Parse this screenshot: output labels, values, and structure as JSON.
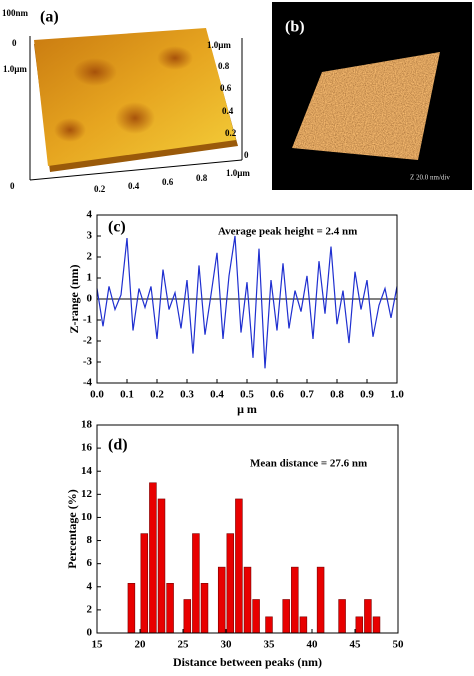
{
  "images": [
    {
      "label": "(a)",
      "z_top": "100nm",
      "z_zero": "0",
      "left_axis": "1.0µm",
      "right_top": "1.0µm",
      "right_ticks": [
        "0.8",
        "0.6",
        "0.4",
        "0.2",
        "0"
      ],
      "bottom_zero": "0",
      "bottom_ticks": [
        "0.2",
        "0.4",
        "0.6",
        "0.8"
      ],
      "bottom_end": "1.0µm"
    },
    {
      "label": "(b)",
      "scale": "Z 20.0 nm/div"
    }
  ],
  "chart_data": [
    {
      "type": "line",
      "label": "(c)",
      "annotation": "Average peak height = 2.4 nm",
      "x_label": "μ m",
      "y_label": "Z-range (nm)",
      "x": [
        0,
        0.02,
        0.04,
        0.06,
        0.08,
        0.1,
        0.12,
        0.14,
        0.16,
        0.18,
        0.2,
        0.22,
        0.24,
        0.26,
        0.28,
        0.3,
        0.32,
        0.34,
        0.36,
        0.38,
        0.4,
        0.42,
        0.44,
        0.46,
        0.48,
        0.5,
        0.52,
        0.54,
        0.56,
        0.58,
        0.6,
        0.62,
        0.64,
        0.66,
        0.68,
        0.7,
        0.72,
        0.74,
        0.76,
        0.78,
        0.8,
        0.82,
        0.84,
        0.86,
        0.88,
        0.9,
        0.92,
        0.94,
        0.96,
        0.98,
        1
      ],
      "series": [
        {
          "color": "#1f2fd0",
          "values": [
            0.5,
            -1.3,
            0.6,
            -0.5,
            0.2,
            2.9,
            -1.5,
            0.5,
            -0.4,
            0.6,
            -1.9,
            1.4,
            -0.5,
            0.3,
            -1.4,
            0.9,
            -2.6,
            1.6,
            -1.7,
            0.2,
            2.2,
            -1.9,
            1.1,
            3.0,
            -1.6,
            0.8,
            -2.8,
            2.4,
            -3.3,
            0.9,
            -1.5,
            1.7,
            -1.4,
            0.4,
            -0.6,
            1.1,
            -1.9,
            1.8,
            -0.7,
            2.5,
            -1.2,
            0.4,
            -2.1,
            1.3,
            -0.5,
            0.9,
            -1.8,
            -0.3,
            0.5,
            -0.9,
            0.6
          ]
        }
      ],
      "xlim": [
        0,
        1
      ],
      "xticks": [
        {
          "value": 0,
          "label": "0.0"
        },
        0.1,
        0.2,
        0.3,
        0.4,
        0.5,
        0.6,
        0.7,
        0.8,
        0.9,
        {
          "value": 1,
          "label": "1.0"
        }
      ],
      "ylim": [
        -4,
        4
      ],
      "yticks": [
        -4,
        -3,
        -2,
        -1,
        0,
        1,
        2,
        3,
        4
      ],
      "zero_line": true
    },
    {
      "type": "bar",
      "label": "(d)",
      "annotation": "Mean distance = 27.6 nm",
      "x_label": "Distance between peaks (nm)",
      "y_label": "Percentage (%)",
      "x": [
        19,
        20.5,
        21.5,
        22.5,
        23.5,
        25.5,
        26.5,
        27.5,
        29.5,
        30.5,
        31.5,
        32.5,
        33.5,
        35,
        37,
        38,
        39,
        41,
        43.5,
        45.5,
        46.5,
        47.5
      ],
      "values": [
        4.3,
        8.6,
        13,
        11.6,
        4.3,
        2.9,
        8.6,
        4.3,
        5.7,
        8.6,
        11.6,
        5.7,
        2.9,
        1.4,
        2.9,
        5.7,
        1.4,
        5.7,
        2.9,
        1.4,
        2.9,
        1.4
      ],
      "bar_width": 0.8,
      "color": "#e80000",
      "xlim": [
        15,
        50
      ],
      "xticks": [
        15,
        20,
        25,
        30,
        35,
        40,
        45,
        50
      ],
      "ylim": [
        0,
        18
      ],
      "yticks": [
        0,
        2,
        4,
        6,
        8,
        10,
        12,
        14,
        16,
        18
      ]
    }
  ]
}
